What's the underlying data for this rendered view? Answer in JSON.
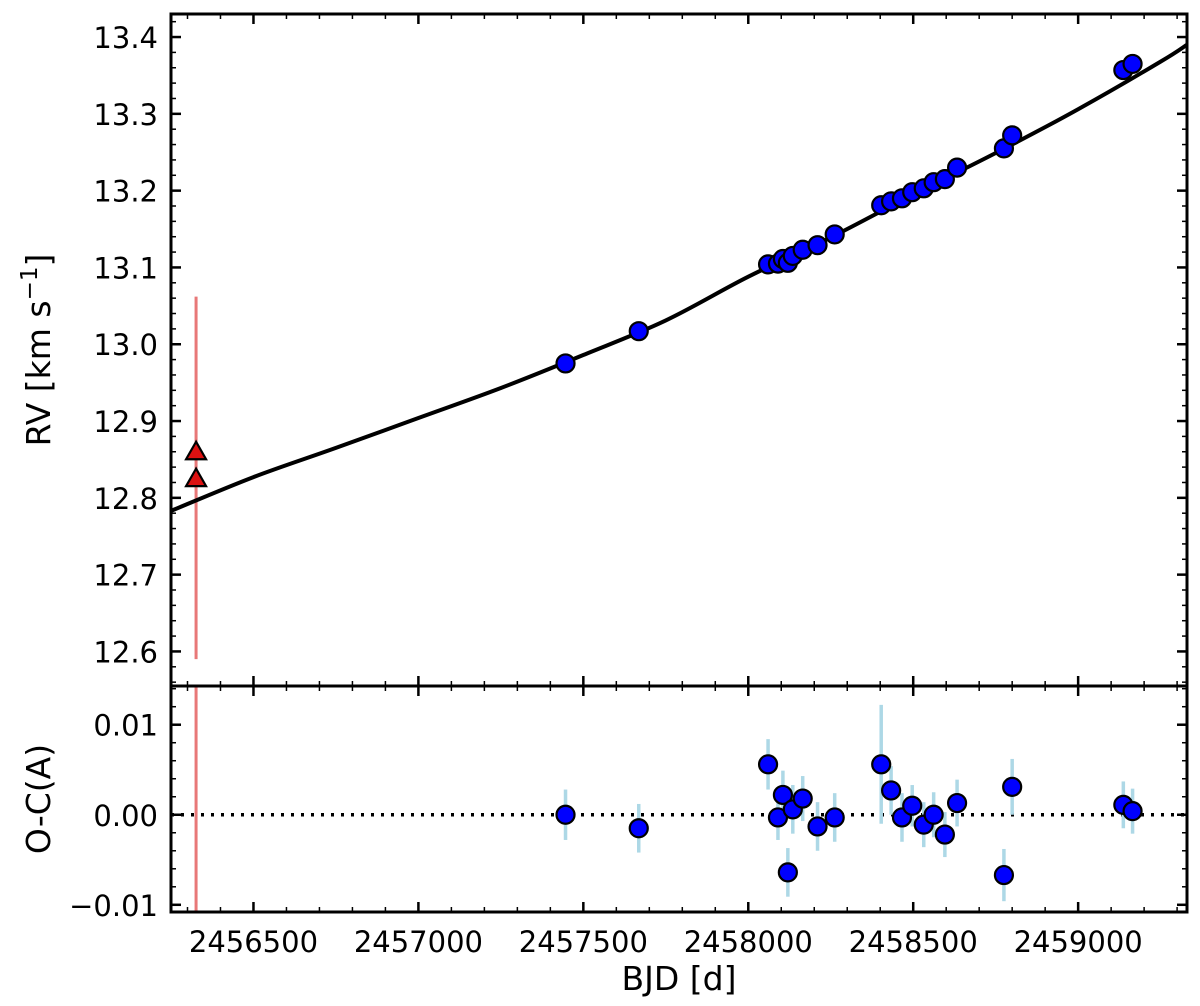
{
  "chart_data": [
    {
      "panel": "top",
      "type": "scatter",
      "xlabel": "BJD [d]",
      "ylabel_main": "RV [km s",
      "ylabel_sup": "−1",
      "ylabel_end": "]",
      "xlim": [
        2456250,
        2459330
      ],
      "ylim": [
        12.555,
        13.43
      ],
      "xticks": [
        2456500,
        2457000,
        2457500,
        2458000,
        2458500,
        2459000
      ],
      "xtick_labels": [
        "2456500",
        "2457000",
        "2457500",
        "2458000",
        "2458500",
        "2459000"
      ],
      "yticks": [
        12.6,
        12.7,
        12.8,
        12.9,
        13.0,
        13.1,
        13.2,
        13.3,
        13.4
      ],
      "ytick_labels": [
        "12.6",
        "12.7",
        "12.8",
        "12.9",
        "13.0",
        "13.1",
        "13.2",
        "13.3",
        "13.4"
      ],
      "grid": false,
      "series": [
        {
          "marker": "circle",
          "color": "#0000ff",
          "error_color": "#add8e6",
          "x": [
            2457446,
            2457668,
            2458060,
            2458090,
            2458105,
            2458120,
            2458135,
            2458165,
            2458210,
            2458262,
            2458403,
            2458433,
            2458466,
            2458497,
            2458532,
            2458562,
            2458596,
            2458633,
            2458775,
            2458800,
            2459137,
            2459165
          ],
          "y": [
            12.975,
            13.017,
            13.104,
            13.105,
            13.111,
            13.106,
            13.115,
            13.123,
            13.129,
            13.143,
            13.181,
            13.186,
            13.19,
            13.198,
            13.203,
            13.211,
            13.215,
            13.23,
            13.255,
            13.272,
            13.357,
            13.365
          ]
        },
        {
          "marker": "triangle",
          "color": "#dd1111",
          "error_color": "#e87878",
          "x": [
            2456326,
            2456326
          ],
          "y": [
            12.86,
            12.825
          ],
          "yerr_range": [
            12.59,
            13.062
          ]
        }
      ],
      "model_curve": {
        "color": "#000000",
        "x": [
          2456250,
          2456500,
          2456750,
          2457000,
          2457250,
          2457500,
          2457750,
          2458000,
          2458250,
          2458500,
          2458750,
          2459000,
          2459250,
          2459330
        ],
        "y": [
          12.783,
          12.827,
          12.865,
          12.904,
          12.943,
          12.986,
          13.031,
          13.088,
          13.139,
          13.195,
          13.249,
          13.306,
          13.368,
          13.39
        ]
      }
    },
    {
      "panel": "bottom",
      "type": "scatter",
      "ylabel": "O-C(A)",
      "xlim": [
        2456250,
        2459330
      ],
      "ylim": [
        -0.0108,
        0.0143
      ],
      "yticks": [
        -0.01,
        0.0,
        0.01
      ],
      "ytick_labels": [
        "−0.01",
        "0.00",
        "0.01"
      ],
      "zero_line": "dotted",
      "series": [
        {
          "marker": "circle",
          "color": "#0000ff",
          "error_color": "#add8e6",
          "x": [
            2457446,
            2457668,
            2458060,
            2458090,
            2458105,
            2458120,
            2458135,
            2458165,
            2458210,
            2458262,
            2458403,
            2458433,
            2458466,
            2458497,
            2458532,
            2458562,
            2458596,
            2458633,
            2458775,
            2458800,
            2459137,
            2459165
          ],
          "y": [
            0.0,
            -0.0015,
            0.0056,
            -0.0003,
            0.0022,
            -0.0064,
            0.0006,
            0.0018,
            -0.0013,
            -0.0003,
            0.0056,
            0.0027,
            -0.0003,
            0.001,
            -0.0011,
            0.0,
            -0.0022,
            0.0013,
            -0.0067,
            0.0031,
            0.0011,
            0.0004
          ],
          "yerr": [
            0.0028,
            0.0027,
            0.0028,
            0.0025,
            0.0027,
            0.0027,
            0.0027,
            0.0025,
            0.0027,
            0.0027,
            0.0066,
            0.0027,
            0.0027,
            0.0023,
            0.0025,
            0.0025,
            0.0025,
            0.0026,
            0.0029,
            0.0031,
            0.0026,
            0.0025
          ]
        }
      ],
      "reference_error": {
        "color": "#e87878",
        "x": 2456326
      }
    }
  ]
}
